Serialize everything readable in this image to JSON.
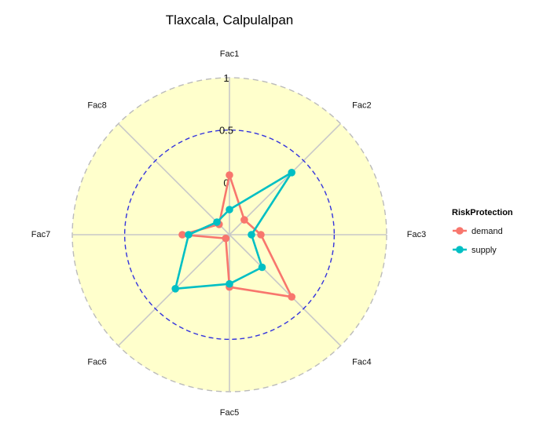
{
  "chart_data": {
    "type": "radar",
    "title": "Tlaxcala, Calpulalpan",
    "axes": [
      "Fac1",
      "Fac2",
      "Fac3",
      "Fac4",
      "Fac5",
      "Fac6",
      "Fac7",
      "Fac8"
    ],
    "rlim": [
      -0.5,
      1
    ],
    "ticks": [
      {
        "value": 0,
        "label": "0"
      },
      {
        "value": 0.5,
        "label": "0.5"
      },
      {
        "value": 1,
        "label": "1"
      }
    ],
    "reference_circle": 0.5,
    "legend": {
      "title": "RiskProtection",
      "position": "right"
    },
    "series": [
      {
        "name": "demand",
        "color": "#F8766D",
        "values": [
          0.07,
          -0.3,
          -0.2,
          0.34,
          0.0,
          -0.45,
          -0.05,
          -0.36
        ]
      },
      {
        "name": "supply",
        "color": "#00BFC4",
        "values": [
          -0.26,
          0.34,
          -0.29,
          -0.06,
          -0.03,
          0.23,
          -0.11,
          -0.33
        ]
      }
    ],
    "background_color": "#FFFFCC",
    "grid": true
  }
}
